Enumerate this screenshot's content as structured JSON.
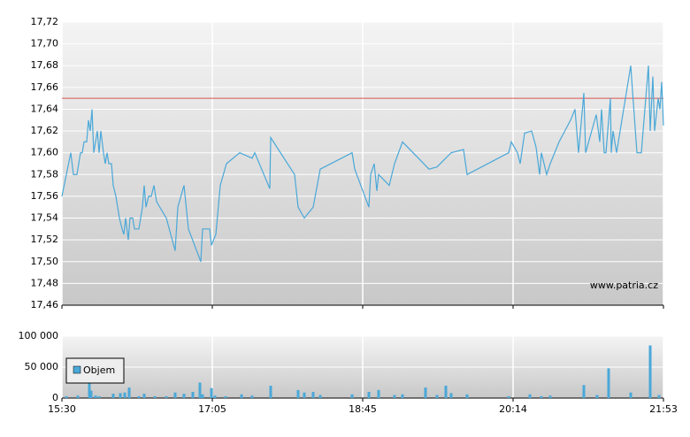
{
  "chart_data": [
    {
      "type": "line",
      "annotation": "www.patria.cz",
      "xlim": [
        0,
        680
      ],
      "xticks": [
        0,
        170,
        340,
        510,
        680
      ],
      "ylim": [
        17.46,
        17.72
      ],
      "yticks": [
        {
          "value": 17.46,
          "label": "17,46"
        },
        {
          "value": 17.48,
          "label": "17,48"
        },
        {
          "value": 17.5,
          "label": "17,50"
        },
        {
          "value": 17.52,
          "label": "17,52"
        },
        {
          "value": 17.54,
          "label": "17,54"
        },
        {
          "value": 17.56,
          "label": "17,56"
        },
        {
          "value": 17.58,
          "label": "17,58"
        },
        {
          "value": 17.6,
          "label": "17,60"
        },
        {
          "value": 17.62,
          "label": "17,62"
        },
        {
          "value": 17.64,
          "label": "17,64"
        },
        {
          "value": 17.66,
          "label": "17,66"
        },
        {
          "value": 17.68,
          "label": "17,68"
        },
        {
          "value": 17.7,
          "label": "17,70"
        },
        {
          "value": 17.72,
          "label": "17,72"
        }
      ],
      "grid": true,
      "reference_line": {
        "value": 17.65,
        "color": "#d9534f"
      },
      "series": [
        {
          "color": "#4aa8d8",
          "x": [
            0,
            10,
            13,
            17,
            21,
            23,
            25,
            28,
            30,
            32,
            34,
            36,
            38,
            40,
            42,
            44,
            47,
            49,
            51,
            53,
            56,
            58,
            61,
            63,
            65,
            68,
            70,
            72,
            75,
            77,
            80,
            82,
            85,
            87,
            91,
            93,
            95,
            98,
            101,
            104,
            107,
            118,
            128,
            131,
            138,
            143,
            157,
            159,
            167,
            169,
            174,
            179,
            186,
            201,
            215,
            218,
            235,
            236,
            263,
            267,
            274,
            284,
            292,
            328,
            331,
            347,
            349,
            353,
            356,
            358,
            370,
            376,
            385,
            415,
            424,
            440,
            454,
            458,
            505,
            508,
            515,
            518,
            523,
            531,
            536,
            540,
            542,
            548,
            552,
            562,
            575,
            580,
            584,
            590,
            592,
            604,
            608,
            610,
            613,
            615,
            620,
            621,
            623,
            627,
            643,
            650,
            655,
            660,
            663,
            665,
            668,
            670,
            674,
            676,
            678,
            680
          ],
          "values": [
            17.56,
            17.6,
            17.58,
            17.58,
            17.6,
            17.6,
            17.61,
            17.61,
            17.63,
            17.62,
            17.64,
            17.6,
            17.61,
            17.62,
            17.6,
            17.62,
            17.6,
            17.59,
            17.6,
            17.59,
            17.59,
            17.57,
            17.56,
            17.55,
            17.54,
            17.53,
            17.525,
            17.54,
            17.52,
            17.54,
            17.54,
            17.53,
            17.53,
            17.53,
            17.55,
            17.57,
            17.55,
            17.56,
            17.56,
            17.57,
            17.555,
            17.54,
            17.51,
            17.55,
            17.57,
            17.53,
            17.5,
            17.53,
            17.53,
            17.515,
            17.525,
            17.57,
            17.59,
            17.6,
            17.595,
            17.6,
            17.567,
            17.614,
            17.58,
            17.55,
            17.54,
            17.55,
            17.585,
            17.6,
            17.585,
            17.55,
            17.58,
            17.59,
            17.565,
            17.58,
            17.57,
            17.59,
            17.61,
            17.585,
            17.587,
            17.6,
            17.603,
            17.58,
            17.6,
            17.61,
            17.6,
            17.59,
            17.618,
            17.62,
            17.605,
            17.58,
            17.6,
            17.58,
            17.59,
            17.61,
            17.63,
            17.64,
            17.6,
            17.655,
            17.6,
            17.635,
            17.61,
            17.64,
            17.6,
            17.6,
            17.65,
            17.6,
            17.62,
            17.6,
            17.68,
            17.6,
            17.6,
            17.65,
            17.68,
            17.62,
            17.67,
            17.62,
            17.65,
            17.64,
            17.665,
            17.625
          ]
        }
      ]
    },
    {
      "type": "bar",
      "xlim": [
        0,
        680
      ],
      "xticks": [
        {
          "value": 0,
          "label": "15:30"
        },
        {
          "value": 170,
          "label": "17:05"
        },
        {
          "value": 340,
          "label": "18:45"
        },
        {
          "value": 510,
          "label": "20:14"
        },
        {
          "value": 680,
          "label": "21:53"
        }
      ],
      "ylim": [
        0,
        100000
      ],
      "yticks": [
        0,
        {
          "value": 50000,
          "label": "50 000"
        },
        {
          "value": 100000,
          "label": "100 000"
        }
      ],
      "grid": true,
      "legend": "upper-left",
      "series": [
        {
          "name": "Objem",
          "color": "#4aa8d8",
          "x": [
            5,
            18,
            31,
            33,
            38,
            42,
            58,
            66,
            71,
            76,
            87,
            93,
            105,
            118,
            128,
            138,
            148,
            156,
            159,
            169,
            173,
            185,
            203,
            215,
            236,
            267,
            274,
            284,
            292,
            328,
            347,
            358,
            376,
            385,
            411,
            424,
            434,
            440,
            458,
            505,
            529,
            542,
            552,
            590,
            605,
            618,
            643,
            665,
            675
          ],
          "values": [
            3000,
            4000,
            35000,
            12000,
            4000,
            3000,
            7000,
            8000,
            9000,
            17000,
            3000,
            7000,
            3000,
            3000,
            9000,
            7000,
            10000,
            25000,
            6000,
            16000,
            4000,
            3000,
            6000,
            4000,
            20000,
            13000,
            9000,
            10000,
            5000,
            6000,
            10000,
            13000,
            5000,
            6000,
            17000,
            5000,
            20000,
            8000,
            6000,
            3000,
            6000,
            3000,
            4000,
            21000,
            5000,
            48000,
            9000,
            85000,
            5000
          ]
        }
      ]
    }
  ]
}
